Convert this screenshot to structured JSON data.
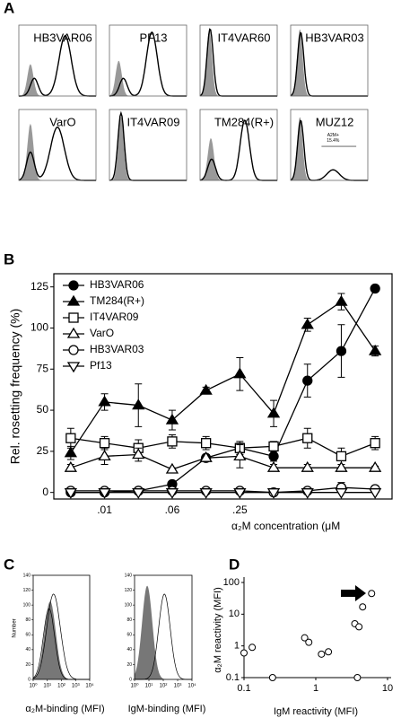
{
  "chart_data": [
    {
      "type": "flow-histograms",
      "label": "A",
      "panels": [
        "HB3VAR06",
        "PF13",
        "IT4VAR60",
        "HB3VAR03",
        "VarO",
        "IT4VAR09",
        "TM284(R+)",
        "MUZ12"
      ],
      "annotation": [
        "A2M+",
        "15.4%"
      ]
    },
    {
      "type": "line",
      "label": "B",
      "categories": [
        null,
        ".01",
        null,
        ".06",
        null,
        ".25",
        null,
        null,
        null,
        null
      ],
      "xlabel": "α₂M concentration (μM",
      "ylabel": "Rel. rosetting frequency (%)",
      "ylim": [
        -4,
        133
      ],
      "yticks": [
        0,
        25,
        50,
        75,
        100,
        125
      ],
      "legend": "upper left",
      "series": [
        {
          "name": "HB3VAR06",
          "color": "#000000",
          "marker": "circle",
          "filled": true,
          "values": [
            0,
            0,
            1,
            5,
            21,
            27,
            22,
            68,
            86,
            124
          ],
          "errors": [
            0,
            0,
            0,
            1,
            2,
            3,
            3,
            10,
            16,
            0
          ]
        },
        {
          "name": "TM284(R+)",
          "color": "#000000",
          "marker": "triangle-up",
          "filled": true,
          "values": [
            24,
            55,
            53,
            44,
            62,
            72,
            48,
            102,
            116,
            86
          ],
          "errors": [
            4,
            5,
            13,
            6,
            2,
            10,
            8,
            4,
            5,
            3
          ]
        },
        {
          "name": "IT4VAR09",
          "color": "#000000",
          "marker": "square",
          "filled": false,
          "values": [
            33,
            30,
            27,
            31,
            30,
            27,
            28,
            33,
            22,
            30
          ],
          "errors": [
            6,
            4,
            5,
            4,
            4,
            4,
            3,
            6,
            5,
            4
          ]
        },
        {
          "name": "VarO",
          "color": "#000000",
          "marker": "triangle-up",
          "filled": false,
          "values": [
            15,
            22,
            23,
            14,
            21,
            22,
            15,
            15,
            15,
            15
          ],
          "errors": [
            2,
            5,
            4,
            1,
            2,
            7,
            2,
            2,
            2,
            1
          ]
        },
        {
          "name": "HB3VAR03",
          "color": "#000000",
          "marker": "circle",
          "filled": false,
          "values": [
            1,
            1,
            1,
            1,
            1,
            1,
            0,
            1,
            3,
            2
          ],
          "errors": [
            1,
            1,
            1,
            1,
            1,
            1,
            1,
            1,
            3,
            2
          ]
        },
        {
          "name": "Pf13",
          "color": "#000000",
          "marker": "triangle-down",
          "filled": false,
          "values": [
            0,
            0,
            0,
            0,
            0,
            0,
            0,
            0,
            0,
            0
          ]
        }
      ]
    },
    {
      "type": "flow-histograms",
      "label": "C",
      "ylabel": "Number",
      "xlabels": [
        "α₂M-binding (MFI)",
        "IgM-binding (MFI)"
      ],
      "xscale": "log",
      "xlim": [
        1,
        10000
      ],
      "xticks": [
        {
          "value": 1,
          "label": "10⁰"
        },
        {
          "value": 10,
          "label": "10¹"
        },
        {
          "value": 100,
          "label": "10²"
        },
        {
          "value": 1000,
          "label": "10³"
        },
        {
          "value": 10000,
          "label": "10⁴"
        }
      ],
      "ylim": [
        0,
        140
      ],
      "yticks": [
        0,
        20,
        40,
        60,
        80,
        100,
        120,
        140
      ]
    },
    {
      "type": "scatter",
      "label": "D",
      "xlabel": "IgM reactivity (MFI)",
      "ylabel": "α₂M reactivity (MFI)",
      "xscale": "log",
      "yscale": "log",
      "xlim": [
        0.1,
        10
      ],
      "xticks": [
        0.1,
        1,
        10
      ],
      "ylim": [
        0.1,
        100
      ],
      "yticks": [
        0.1,
        1,
        10,
        100
      ],
      "x": [
        0.1,
        0.13,
        0.25,
        0.7,
        0.8,
        1.2,
        1.5,
        3.5,
        4,
        4.5,
        6,
        3.8
      ],
      "y": [
        0.6,
        0.9,
        0.1,
        1.8,
        1.3,
        0.55,
        0.65,
        5,
        4,
        17,
        45,
        0.1
      ]
    }
  ]
}
